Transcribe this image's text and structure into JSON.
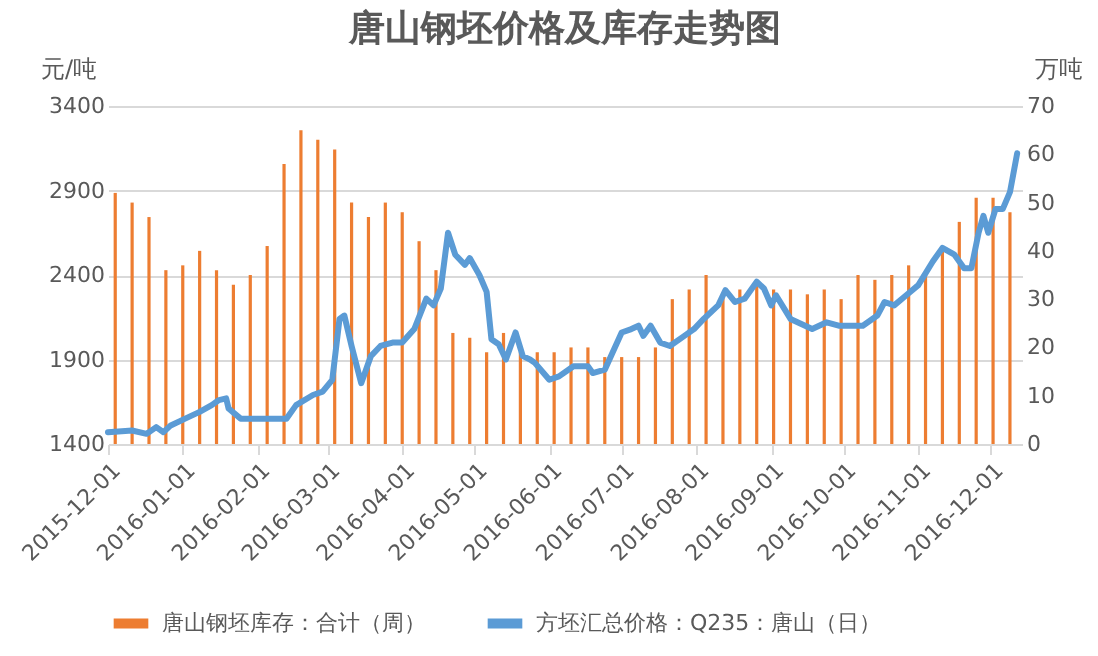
{
  "chart_data": {
    "type": "bar",
    "title": "唐山钢坯价格及库存走势图",
    "ylabel": "元/吨",
    "y2label": "万吨",
    "xlim": [
      "2015-12-01",
      "2016-12-14"
    ],
    "xticks": [
      "2015-12-01",
      "2016-01-01",
      "2016-02-01",
      "2016-03-01",
      "2016-04-01",
      "2016-05-01",
      "2016-06-01",
      "2016-07-01",
      "2016-08-01",
      "2016-09-01",
      "2016-10-01",
      "2016-11-01",
      "2016-12-01"
    ],
    "ylim": [
      1400,
      3400
    ],
    "yticks": [
      1400,
      1900,
      2400,
      2900,
      3400
    ],
    "y2lim": [
      0,
      70
    ],
    "y2ticks": [
      0,
      10,
      20,
      30,
      40,
      50,
      60,
      70
    ],
    "grid": "y",
    "legend": "bottom",
    "series": [
      {
        "name": "唐山钢坯库存：合计（周）",
        "axis": "y2",
        "color": "#ed7d31",
        "x": [
          "2015-12-04",
          "2015-12-11",
          "2015-12-18",
          "2015-12-25",
          "2016-01-01",
          "2016-01-08",
          "2016-01-15",
          "2016-01-22",
          "2016-01-29",
          "2016-02-05",
          "2016-02-12",
          "2016-02-19",
          "2016-02-26",
          "2016-03-04",
          "2016-03-11",
          "2016-03-18",
          "2016-03-25",
          "2016-04-01",
          "2016-04-08",
          "2016-04-15",
          "2016-04-22",
          "2016-04-29",
          "2016-05-06",
          "2016-05-13",
          "2016-05-20",
          "2016-05-27",
          "2016-06-03",
          "2016-06-10",
          "2016-06-17",
          "2016-06-24",
          "2016-07-01",
          "2016-07-08",
          "2016-07-15",
          "2016-07-22",
          "2016-07-29",
          "2016-08-05",
          "2016-08-12",
          "2016-08-19",
          "2016-08-26",
          "2016-09-02",
          "2016-09-09",
          "2016-09-16",
          "2016-09-23",
          "2016-09-30",
          "2016-10-07",
          "2016-10-14",
          "2016-10-21",
          "2016-10-28",
          "2016-11-04",
          "2016-11-11",
          "2016-11-18",
          "2016-11-25",
          "2016-12-02",
          "2016-12-09"
        ],
        "values": [
          52,
          50,
          47,
          36,
          37,
          40,
          36,
          33,
          35,
          41,
          58,
          65,
          63,
          61,
          50,
          47,
          50,
          48,
          42,
          36,
          23,
          22,
          19,
          23,
          19,
          19,
          19,
          20,
          20,
          18,
          18,
          18,
          20,
          30,
          32,
          35,
          31,
          32,
          33,
          32,
          32,
          31,
          32,
          30,
          35,
          34,
          35,
          37,
          35,
          40,
          46,
          51,
          51,
          48
        ]
      },
      {
        "name": "方坯汇总价格：Q235：唐山（日）",
        "type": "line",
        "axis": "y",
        "color": "#5b9bd5",
        "x": [
          "2015-12-01",
          "2015-12-11",
          "2015-12-17",
          "2015-12-21",
          "2015-12-24",
          "2015-12-27",
          "2016-01-02",
          "2016-01-08",
          "2016-01-13",
          "2016-01-16",
          "2016-01-19",
          "2016-01-20",
          "2016-01-25",
          "2016-01-30",
          "2016-02-13",
          "2016-02-17",
          "2016-02-24",
          "2016-02-28",
          "2016-03-03",
          "2016-03-06",
          "2016-03-08",
          "2016-03-11",
          "2016-03-15",
          "2016-03-19",
          "2016-03-23",
          "2016-03-28",
          "2016-04-01",
          "2016-04-06",
          "2016-04-11",
          "2016-04-14",
          "2016-04-17",
          "2016-04-20",
          "2016-04-23",
          "2016-04-27",
          "2016-04-29",
          "2016-05-03",
          "2016-05-06",
          "2016-05-08",
          "2016-05-11",
          "2016-05-14",
          "2016-05-18",
          "2016-05-21",
          "2016-05-24",
          "2016-05-26",
          "2016-06-01",
          "2016-06-05",
          "2016-06-11",
          "2016-06-17",
          "2016-06-19",
          "2016-06-24",
          "2016-07-01",
          "2016-07-05",
          "2016-07-08",
          "2016-07-10",
          "2016-07-13",
          "2016-07-17",
          "2016-07-21",
          "2016-07-27",
          "2016-07-31",
          "2016-08-04",
          "2016-08-10",
          "2016-08-13",
          "2016-08-17",
          "2016-08-21",
          "2016-08-26",
          "2016-08-29",
          "2016-09-01",
          "2016-09-03",
          "2016-09-09",
          "2016-09-18",
          "2016-09-24",
          "2016-09-29",
          "2016-10-09",
          "2016-10-15",
          "2016-10-18",
          "2016-10-22",
          "2016-10-27",
          "2016-11-01",
          "2016-11-07",
          "2016-11-11",
          "2016-11-16",
          "2016-11-20",
          "2016-11-23",
          "2016-11-26",
          "2016-11-28",
          "2016-11-30",
          "2016-12-03",
          "2016-12-06",
          "2016-12-09",
          "2016-12-12"
        ],
        "values": [
          1470,
          1480,
          1460,
          1500,
          1470,
          1510,
          1550,
          1590,
          1630,
          1660,
          1670,
          1610,
          1550,
          1550,
          1550,
          1630,
          1690,
          1710,
          1780,
          2140,
          2160,
          1980,
          1760,
          1920,
          1980,
          2000,
          2000,
          2080,
          2260,
          2220,
          2320,
          2650,
          2520,
          2460,
          2500,
          2400,
          2300,
          2020,
          1990,
          1900,
          2060,
          1920,
          1900,
          1880,
          1780,
          1800,
          1860,
          1860,
          1820,
          1840,
          2060,
          2080,
          2100,
          2040,
          2100,
          2000,
          1980,
          2040,
          2080,
          2140,
          2220,
          2310,
          2240,
          2260,
          2360,
          2320,
          2220,
          2280,
          2140,
          2080,
          2120,
          2100,
          2100,
          2160,
          2240,
          2220,
          2280,
          2340,
          2480,
          2560,
          2520,
          2440,
          2440,
          2650,
          2750,
          2650,
          2790,
          2790,
          2890,
          3120
        ]
      }
    ]
  }
}
